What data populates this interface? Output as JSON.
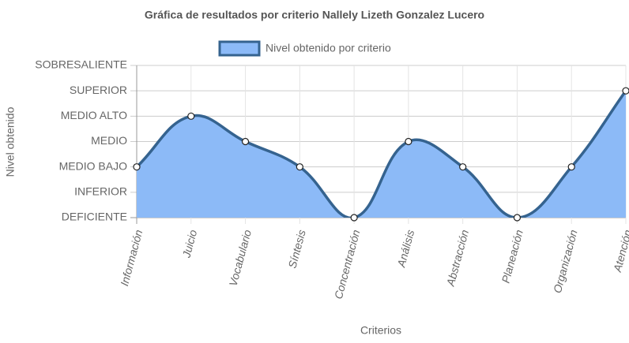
{
  "chart_data": {
    "type": "line",
    "title": "Gráfica de resultados por criterio Nallely Lizeth Gonzalez Lucero",
    "x_label": "Criterios",
    "y_label": "Nivel obtenido",
    "categories": [
      "Información",
      "Juicio",
      "Vocabulario",
      "Síntesis",
      "Concentración",
      "Análisis",
      "Abstracción",
      "Planeación",
      "Organización",
      "Atención"
    ],
    "series": [
      {
        "name": "Nivel obtenido por criterio",
        "color": "#35638f",
        "fill_color": "#8cbaf7",
        "values": [
          2,
          4,
          3,
          2,
          0,
          3,
          2,
          0,
          2,
          5
        ]
      }
    ],
    "ylim": [
      0,
      6
    ],
    "yticks": [
      {
        "value": 0,
        "label": "DEFICIENTE"
      },
      {
        "value": 1,
        "label": "INFERIOR"
      },
      {
        "value": 2,
        "label": "MEDIO BAJO"
      },
      {
        "value": 3,
        "label": "MEDIO"
      },
      {
        "value": 4,
        "label": "MEDIO ALTO"
      },
      {
        "value": 5,
        "label": "SUPERIOR"
      },
      {
        "value": 6,
        "label": "SOBRESALIENTE"
      }
    ],
    "grid": true,
    "legend": "top",
    "smooth": true
  }
}
